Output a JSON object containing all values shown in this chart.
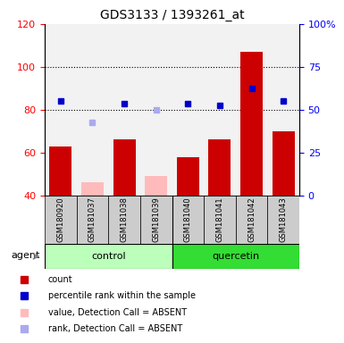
{
  "title": "GDS3133 / 1393261_at",
  "samples": [
    "GSM180920",
    "GSM181037",
    "GSM181038",
    "GSM181039",
    "GSM181040",
    "GSM181041",
    "GSM181042",
    "GSM181043"
  ],
  "bar_values": [
    63,
    46,
    66,
    49,
    58,
    66,
    107,
    70
  ],
  "bar_absent": [
    false,
    true,
    false,
    true,
    false,
    false,
    false,
    false
  ],
  "rank_values": [
    84,
    74,
    83,
    80,
    83,
    82,
    90,
    84
  ],
  "rank_absent": [
    false,
    true,
    false,
    true,
    false,
    false,
    false,
    false
  ],
  "bar_color_present": "#cc0000",
  "bar_color_absent": "#ffbbbb",
  "rank_color_present": "#0000cc",
  "rank_color_absent": "#aaaaee",
  "ylim_left": [
    40,
    120
  ],
  "ylim_right": [
    0,
    100
  ],
  "yticks_left": [
    40,
    60,
    80,
    100,
    120
  ],
  "ytick_labels_right": [
    "0",
    "25",
    "50",
    "75",
    "100%"
  ],
  "control_color": "#bbffbb",
  "quercetin_color": "#33dd33",
  "title_fontsize": 10,
  "tick_fontsize": 8,
  "legend": [
    {
      "color": "#cc0000",
      "label": "count"
    },
    {
      "color": "#0000cc",
      "label": "percentile rank within the sample"
    },
    {
      "color": "#ffbbbb",
      "label": "value, Detection Call = ABSENT"
    },
    {
      "color": "#aaaaee",
      "label": "rank, Detection Call = ABSENT"
    }
  ]
}
